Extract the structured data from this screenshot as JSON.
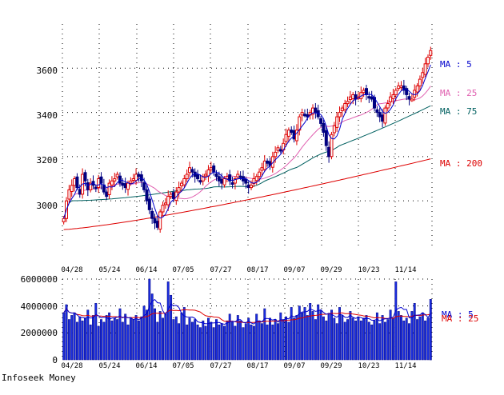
{
  "chart_data": [
    {
      "type": "candlestick",
      "y_ticks": [
        "3000",
        "3200",
        "3400",
        "3600"
      ],
      "ylim": [
        2780,
        3800
      ],
      "x_ticks": [
        "04/28",
        "05/24",
        "06/14",
        "07/05",
        "07/27",
        "08/17",
        "09/07",
        "09/29",
        "10/23",
        "11/14"
      ],
      "grid": true,
      "ma_labels": [
        "MA : 5",
        "MA : 25",
        "MA : 75",
        "MA : 200"
      ],
      "colors": {
        "ma5": "#0000cc",
        "ma25": "#e060b0",
        "ma75": "#006060",
        "ma200": "#dd0000",
        "up_candle": "#dd0000",
        "down_candle": "#000080"
      },
      "close": [
        2920,
        3000,
        3050,
        3070,
        3100,
        3060,
        3030,
        3120,
        3090,
        3050,
        3080,
        3070,
        3060,
        3100,
        3080,
        3040,
        3020,
        3080,
        3090,
        3100,
        3120,
        3080,
        3070,
        3060,
        3080,
        3090,
        3100,
        3120,
        3110,
        3090,
        3050,
        3000,
        2960,
        2920,
        2900,
        2880,
        2950,
        2980,
        2990,
        3020,
        3030,
        3010,
        3040,
        3060,
        3080,
        3100,
        3120,
        3150,
        3130,
        3110,
        3100,
        3090,
        3110,
        3120,
        3140,
        3150,
        3130,
        3110,
        3090,
        3080,
        3100,
        3110,
        3090,
        3080,
        3100,
        3120,
        3110,
        3090,
        3080,
        3060,
        3070,
        3100,
        3110,
        3130,
        3150,
        3180,
        3170,
        3160,
        3200,
        3220,
        3240,
        3230,
        3260,
        3300,
        3320,
        3310,
        3280,
        3320,
        3380,
        3400,
        3390,
        3380,
        3400,
        3420,
        3400,
        3380,
        3350,
        3310,
        3250,
        3200,
        3300,
        3340,
        3380,
        3400,
        3420,
        3440,
        3450,
        3470,
        3480,
        3460,
        3470,
        3490,
        3500,
        3480,
        3470,
        3460,
        3420,
        3400,
        3380,
        3360,
        3420,
        3440,
        3470,
        3480,
        3500,
        3520,
        3520,
        3500,
        3480,
        3460,
        3460,
        3500,
        3520,
        3550,
        3580,
        3620,
        3650,
        3680
      ]
    },
    {
      "type": "bar",
      "y_ticks": [
        "0",
        "2000000",
        "4000000",
        "6000000"
      ],
      "ylim": [
        0,
        6000000
      ],
      "x_ticks": [
        "04/28",
        "05/24",
        "06/14",
        "07/05",
        "07/27",
        "08/17",
        "09/07",
        "09/29",
        "10/23",
        "11/14"
      ],
      "grid": true,
      "ma_labels": [
        "MA : 5",
        "MA : 25"
      ],
      "colors": {
        "bar": "#1a2ee0",
        "ma5": "#0000cc",
        "ma25": "#dd0000"
      },
      "values": [
        3500000,
        4100000,
        3000000,
        3300000,
        3500000,
        2800000,
        3200000,
        2900000,
        3100000,
        3700000,
        2600000,
        3300000,
        4200000,
        2500000,
        3000000,
        2800000,
        3300000,
        3500000,
        2900000,
        3100000,
        3000000,
        3800000,
        2800000,
        3400000,
        2600000,
        3100000,
        3000000,
        3300000,
        2900000,
        3200000,
        4000000,
        3700000,
        6000000,
        4900000,
        3800000,
        2800000,
        3600000,
        3100000,
        3400000,
        5800000,
        4800000,
        3000000,
        3200000,
        2700000,
        3500000,
        3900000,
        2600000,
        3100000,
        2800000,
        3000000,
        2600000,
        2400000,
        2900000,
        2500000,
        3100000,
        2800000,
        2400000,
        3000000,
        2600000,
        2700000,
        2500000,
        2900000,
        3400000,
        2800000,
        2500000,
        3300000,
        2900000,
        2400000,
        2700000,
        3100000,
        2600000,
        2500000,
        3400000,
        2900000,
        2700000,
        3800000,
        2600000,
        3100000,
        2600000,
        3000000,
        2700000,
        3500000,
        3000000,
        3200000,
        2800000,
        3900000,
        3100000,
        3300000,
        4000000,
        3500000,
        3900000,
        3300000,
        4200000,
        3600000,
        3000000,
        4100000,
        3700000,
        3200000,
        2900000,
        3400000,
        3700000,
        3100000,
        2700000,
        3900000,
        3300000,
        2800000,
        3000000,
        3600000,
        3100000,
        2900000,
        3200000,
        2900000,
        3100000,
        3300000,
        2800000,
        2600000,
        2900000,
        3500000,
        2700000,
        3300000,
        2800000,
        3000000,
        3700000,
        3100000,
        5800000,
        3600000,
        3300000,
        2900000,
        3100000,
        2700000,
        3600000,
        4200000,
        3000000,
        3200000,
        3500000,
        2900000,
        3100000,
        4500000
      ]
    }
  ],
  "footer": {
    "source": "Infoseek Money"
  }
}
